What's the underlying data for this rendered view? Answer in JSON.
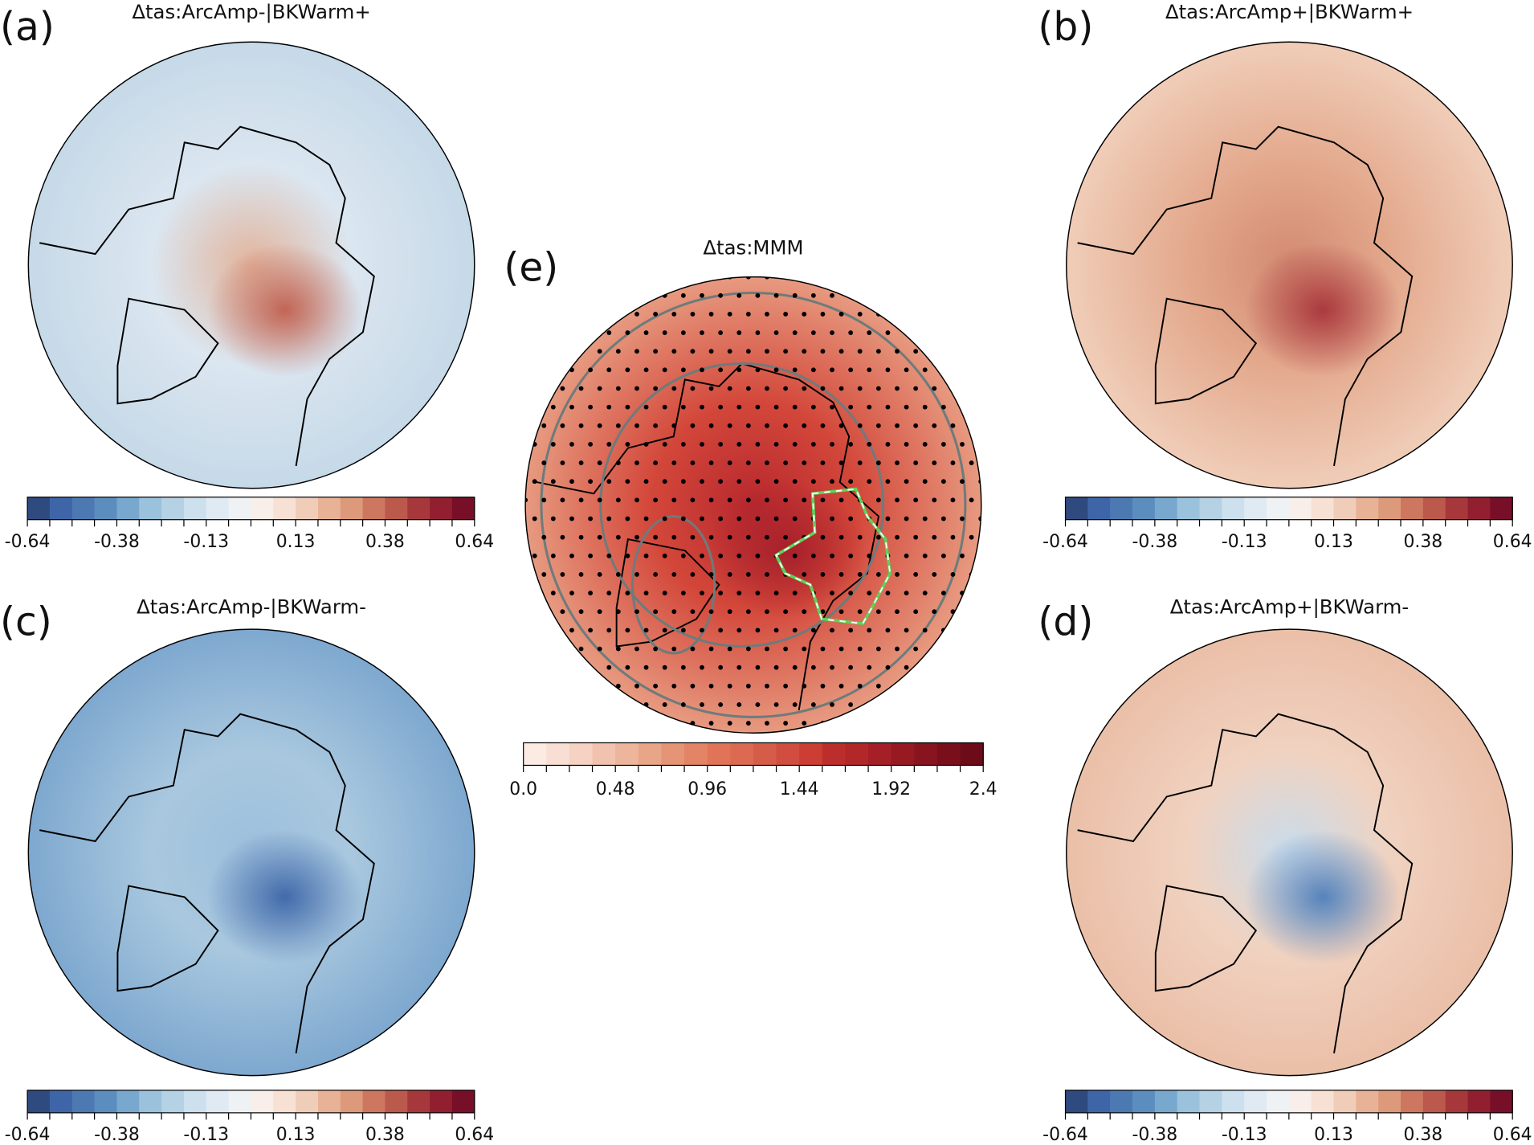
{
  "panels": [
    {
      "id": "a",
      "label": "(a)",
      "title": "Δtas:ArcAmp-|BKWarm+",
      "colorbar": "diverging",
      "ticks": [
        "-0.64",
        "-0.38",
        "-0.13",
        "0.13",
        "0.38",
        "0.64"
      ],
      "field": {
        "base": "#dbe6f0",
        "pole": "#e2b49c",
        "hotspot": "#c0604f",
        "edge": "#c6d9e8"
      }
    },
    {
      "id": "b",
      "label": "(b)",
      "title": "Δtas:ArcAmp+|BKWarm+",
      "colorbar": "diverging",
      "ticks": [
        "-0.64",
        "-0.38",
        "-0.13",
        "0.13",
        "0.38",
        "0.64"
      ],
      "field": {
        "base": "#e3a88c",
        "pole": "#d28a72",
        "hotspot": "#a8343a",
        "edge": "#f0cdb8"
      }
    },
    {
      "id": "c",
      "label": "(c)",
      "title": "Δtas:ArcAmp-|BKWarm-",
      "colorbar": "diverging",
      "ticks": [
        "-0.64",
        "-0.38",
        "-0.13",
        "0.13",
        "0.38",
        "0.64"
      ],
      "field": {
        "base": "#a9c8df",
        "pole": "#9dbfdc",
        "hotspot": "#3d66a8",
        "edge": "#7ea8cf"
      }
    },
    {
      "id": "d",
      "label": "(d)",
      "title": "Δtas:ArcAmp+|BKWarm-",
      "colorbar": "diverging",
      "ticks": [
        "-0.64",
        "-0.38",
        "-0.13",
        "0.13",
        "0.38",
        "0.64"
      ],
      "field": {
        "base": "#f0d2c0",
        "pole": "#c8dcec",
        "hotspot": "#4f7fbb",
        "edge": "#ebbfa8"
      }
    },
    {
      "id": "e",
      "label": "(e)",
      "title": "Δtas:MMM",
      "colorbar": "sequential",
      "ticks": [
        "0.0",
        "0.48",
        "0.96",
        "1.44",
        "1.92",
        "2.4"
      ],
      "field": {
        "base": "#d3473a",
        "pole": "#b8282e",
        "hotspot": "#a51f2a",
        "edge": "#e79a80"
      }
    }
  ],
  "colormaps": {
    "diverging": [
      "#2f4a7f",
      "#3e65a8",
      "#4d79b3",
      "#5b8ebf",
      "#78a8cd",
      "#9bc2dc",
      "#b5d1e4",
      "#cde0ed",
      "#e0eaf3",
      "#eef2f5",
      "#f8eeea",
      "#f6e1d4",
      "#f0cdb8",
      "#e8b296",
      "#dd9a7b",
      "#cd7660",
      "#bb5a4c",
      "#a6383b",
      "#921f30",
      "#780f28"
    ],
    "sequential": [
      "#fbebe3",
      "#f8ded3",
      "#f5d2c2",
      "#f1c3af",
      "#ecb59c",
      "#e8a587",
      "#e59476",
      "#e38467",
      "#e17458",
      "#dc6a52",
      "#d65c4a",
      "#d04d3f",
      "#cc3d33",
      "#bc2e2c",
      "#b22829",
      "#a41f26",
      "#971a22",
      "#87141f",
      "#7a0f1c",
      "#6d0b18"
    ]
  },
  "overlays": {
    "stippling": "significance dots",
    "contour_color": "#6e7b7b",
    "region_outline_colors": [
      "#5fd15a",
      "#ffffff"
    ]
  }
}
